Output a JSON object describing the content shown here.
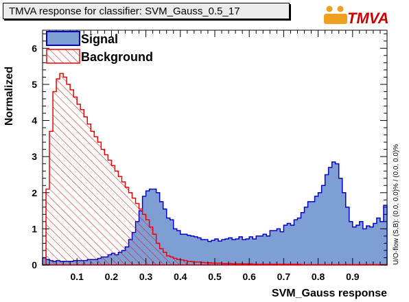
{
  "title": "TMVA response for classifier: SVM_Gauss_0.5_17",
  "logo": {
    "text": "TMVA",
    "brand_color": "#f0a020",
    "accent_color": "#cc0000"
  },
  "colors": {
    "signal_fill": "#7f9fd4",
    "signal_line": "#0000cc",
    "background_line": "#ee0000",
    "background_hatch": "#ee0000"
  },
  "chart_data": {
    "type": "histogram",
    "xlabel": "SVM_Gauss response",
    "ylabel": "Normalized",
    "side_label": "U/O-flow (S,B): (0.0, 0.0)% / (0.0, 0.0)%",
    "xlim": [
      0.0,
      1.0
    ],
    "ylim": [
      0,
      6.5
    ],
    "xticks": [
      0.1,
      0.2,
      0.3,
      0.4,
      0.5,
      0.6,
      0.7,
      0.8,
      0.9
    ],
    "yticks": [
      0,
      1,
      2,
      3,
      4,
      5,
      6
    ],
    "legend_position": "top-left",
    "series": [
      {
        "name": "Signal",
        "bin_edges_range": [
          0.0,
          1.0
        ],
        "values": [
          0.2,
          0.15,
          0.12,
          0.1,
          0.12,
          0.1,
          0.1,
          0.1,
          0.1,
          0.12,
          0.12,
          0.12,
          0.12,
          0.15,
          0.15,
          0.15,
          0.18,
          0.22,
          0.22,
          0.28,
          0.32,
          0.28,
          0.35,
          0.4,
          0.5,
          0.7,
          0.9,
          1.2,
          1.5,
          1.9,
          2.05,
          2.1,
          2.1,
          2.0,
          1.75,
          1.55,
          1.3,
          1.25,
          1.0,
          0.95,
          0.85,
          0.85,
          0.82,
          0.8,
          0.78,
          0.75,
          0.7,
          0.7,
          0.65,
          0.68,
          0.72,
          0.66,
          0.7,
          0.72,
          0.75,
          0.7,
          0.72,
          0.78,
          0.7,
          0.72,
          0.78,
          0.72,
          0.8,
          0.8,
          0.85,
          0.8,
          0.95,
          0.95,
          1.0,
          0.92,
          1.1,
          1.15,
          1.1,
          1.25,
          1.3,
          1.45,
          1.6,
          1.75,
          1.75,
          1.9,
          2.0,
          2.2,
          2.5,
          2.7,
          2.85,
          2.8,
          2.4,
          2.0,
          1.6,
          1.2,
          1.05,
          1.1,
          1.2,
          1.0,
          1.08,
          1.05,
          1.15,
          1.3,
          1.2,
          1.65
        ]
      },
      {
        "name": "Background",
        "bin_edges_range": [
          0.0,
          1.0
        ],
        "values": [
          0,
          2.1,
          3.7,
          4.8,
          5.15,
          5.3,
          5.2,
          5.0,
          4.85,
          4.65,
          4.45,
          4.3,
          4.1,
          3.9,
          3.7,
          3.55,
          3.4,
          3.2,
          3.05,
          2.9,
          2.75,
          2.6,
          2.45,
          2.3,
          2.15,
          2.0,
          1.85,
          1.7,
          1.55,
          1.4,
          1.25,
          1.05,
          0.85,
          0.6,
          0.45,
          0.35,
          0.25,
          0.22,
          0.18,
          0.15,
          0.14,
          0.12,
          0.1,
          0.09,
          0.08,
          0.08,
          0.07,
          0.06,
          0.06,
          0.05,
          0.05,
          0.05,
          0.04,
          0.04,
          0.04,
          0.03,
          0.03,
          0.03,
          0.03,
          0.03,
          0.03,
          0.02,
          0.02,
          0.02,
          0.02,
          0.02,
          0.02,
          0.02,
          0.02,
          0.02,
          0.02,
          0.02,
          0.02,
          0.02,
          0.02,
          0.01,
          0.01,
          0.01,
          0.01,
          0.01,
          0.01,
          0.01,
          0.01,
          0.01,
          0.01,
          0.01,
          0.01,
          0.01,
          0.01,
          0.01,
          0.01,
          0.01,
          0.01,
          0.01,
          0.01,
          0.01,
          0.01,
          0.01,
          0.01,
          0.01
        ]
      }
    ]
  }
}
